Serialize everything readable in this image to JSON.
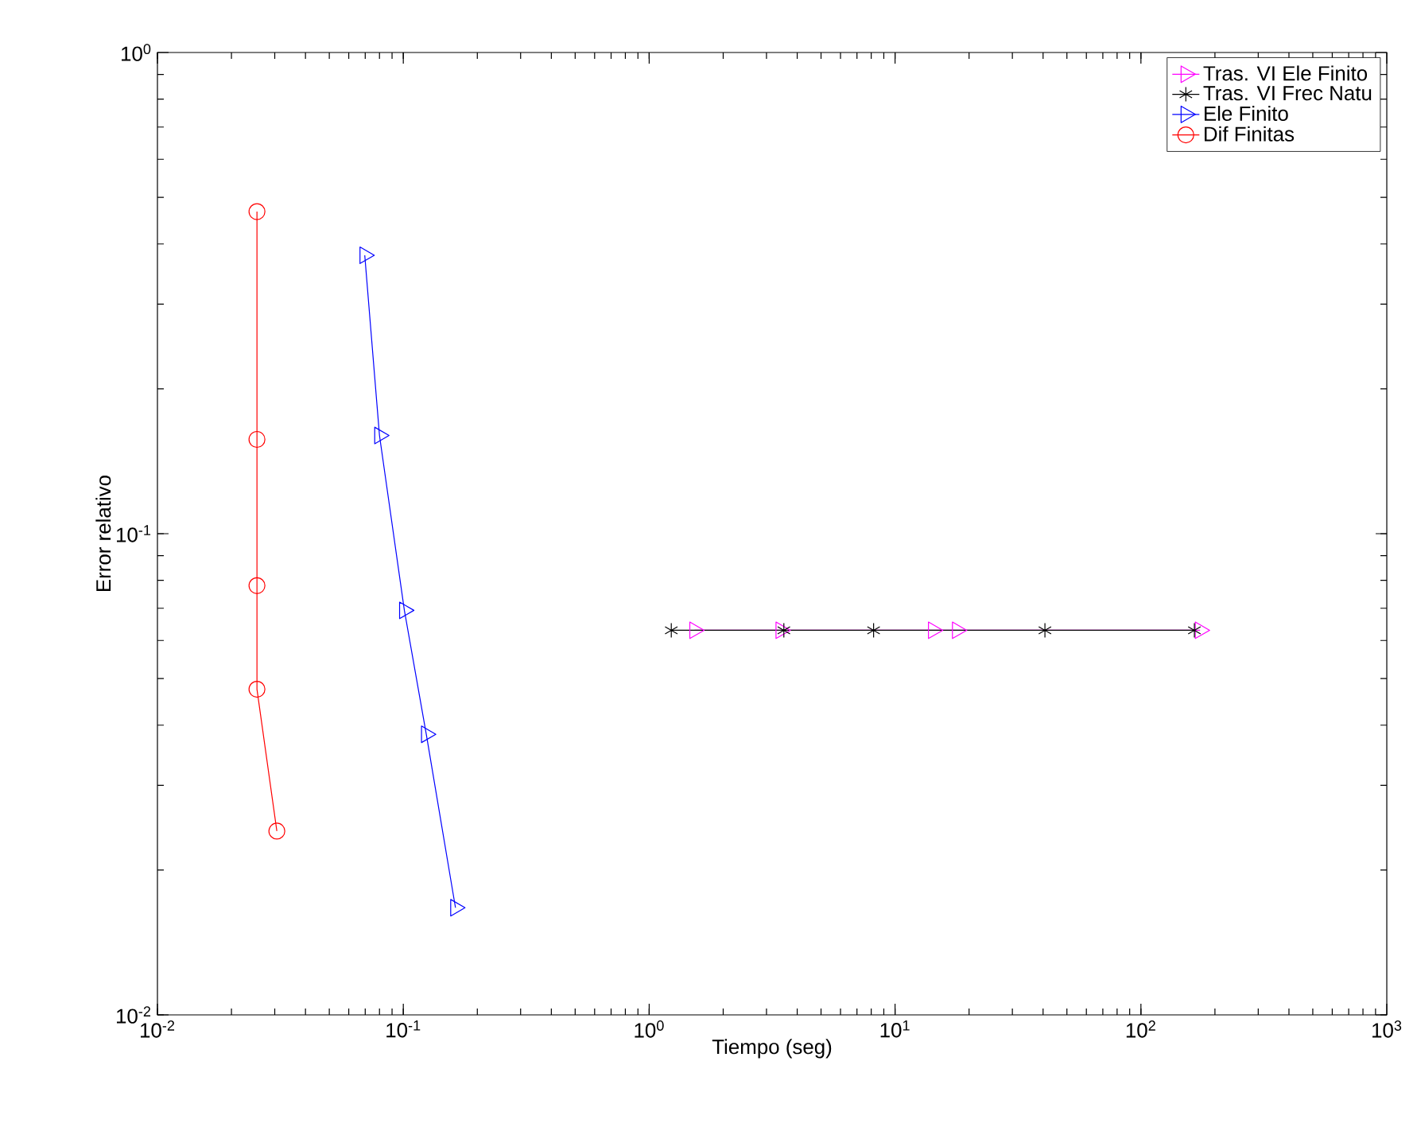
{
  "chart_data": {
    "type": "line",
    "xlabel": "Tiempo (seg)",
    "ylabel": "Error relativo",
    "log": "xy",
    "legend": "top right",
    "grid": false,
    "xlim": [
      0.01,
      1000
    ],
    "ylim": [
      0.01,
      1
    ],
    "xticks": [
      {
        "value": 0.01,
        "label": "10$^{-2}$"
      },
      {
        "value": 0.1,
        "label": "10$^{-1}$"
      },
      {
        "value": 1,
        "label": "10$^{0}$"
      },
      {
        "value": 10,
        "label": "10$^{1}$"
      },
      {
        "value": 100,
        "label": "10$^{2}$"
      },
      {
        "value": 1000,
        "label": "10$^{3}$"
      }
    ],
    "yticks": [
      {
        "value": 0.01,
        "label": "10$^{-2}$"
      },
      {
        "value": 0.1,
        "label": "10$^{-1}$"
      },
      {
        "value": 1,
        "label": "10$^{0}$"
      }
    ],
    "series": [
      {
        "name": "Tras. VI Ele Finito",
        "color": "#ff00ff",
        "marker": "triangle",
        "x": [
          1.53,
          3.43,
          14.3,
          17.9,
          174
        ],
        "values": [
          0.063,
          0.063,
          0.063,
          0.063,
          0.063
        ]
      },
      {
        "name": "Tras. VI Frec Natu",
        "color": "#000000",
        "marker": "cross",
        "x": [
          1.23,
          3.53,
          8.18,
          40.7,
          165
        ],
        "values": [
          0.063,
          0.063,
          0.063,
          0.063,
          0.063
        ]
      },
      {
        "name": "Ele Finito",
        "color": "#0000ff",
        "marker": "triangle",
        "x": [
          0.0697,
          0.08,
          0.101,
          0.124,
          0.163
        ],
        "values": [
          0.379,
          0.16,
          0.0693,
          0.0383,
          0.0167
        ]
      },
      {
        "name": "Dif Finitas",
        "color": "#ff0000",
        "marker": "circle",
        "x": [
          0.0254,
          0.0254,
          0.0254,
          0.0254,
          0.0306
        ],
        "values": [
          0.467,
          0.157,
          0.078,
          0.0475,
          0.0241
        ]
      }
    ]
  }
}
